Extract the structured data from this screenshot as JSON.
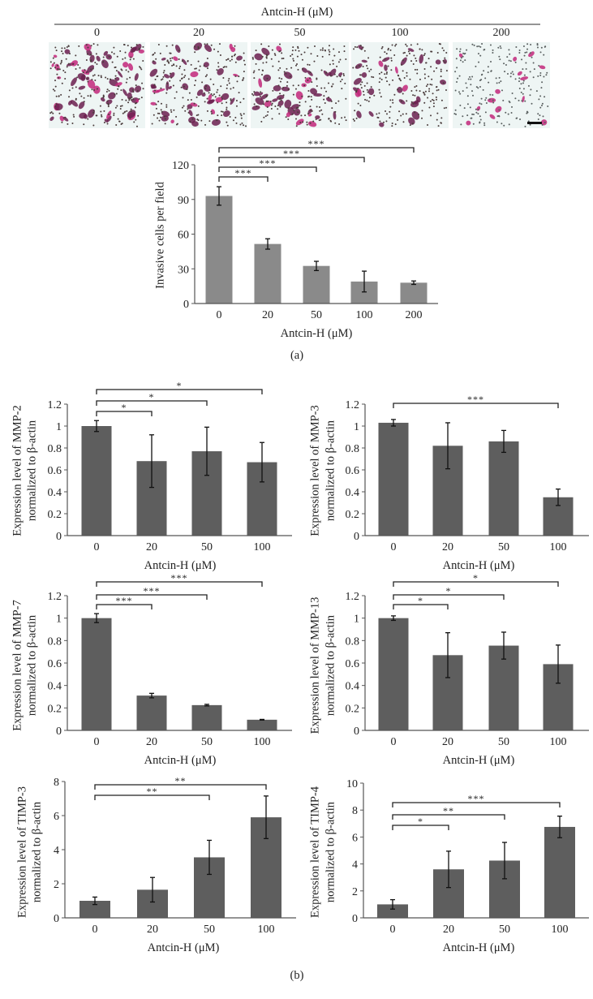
{
  "header": {
    "title": "Antcin-H (μM)",
    "image_labels": [
      "0",
      "20",
      "50",
      "100",
      "200"
    ],
    "stain_colors": {
      "cells": "#6b1f4f",
      "magenta": "#c2277a",
      "background": "#eef5f4",
      "small_cells": "#4a3c3c"
    }
  },
  "panel_labels": {
    "a": "(a)",
    "b": "(b)"
  },
  "colors": {
    "bar_a": "#8a8a8a",
    "bar_b": "#5e5e5e",
    "axis": "#555555"
  },
  "chart_data": [
    {
      "id": "invasion",
      "type": "bar",
      "categories": [
        "0",
        "20",
        "50",
        "100",
        "200"
      ],
      "values": [
        93,
        51.5,
        32.5,
        19,
        18
      ],
      "errors": [
        8,
        4.5,
        4,
        9,
        1.5
      ],
      "ylabel": [
        "Invasive cells per field"
      ],
      "xlabel": "Antcin-H (μM)",
      "ylim": [
        0,
        120
      ],
      "yticks": [
        "0",
        "30",
        "60",
        "90",
        "120"
      ],
      "significance": [
        {
          "from": 0,
          "to": 1,
          "label": "***"
        },
        {
          "from": 0,
          "to": 2,
          "label": "***"
        },
        {
          "from": 0,
          "to": 3,
          "label": "***"
        },
        {
          "from": 0,
          "to": 4,
          "label": "***"
        }
      ]
    },
    {
      "id": "mmp2",
      "type": "bar",
      "categories": [
        "0",
        "20",
        "50",
        "100"
      ],
      "values": [
        1.0,
        0.68,
        0.77,
        0.67
      ],
      "errors": [
        0.05,
        0.24,
        0.22,
        0.18
      ],
      "ylabel": [
        "Expression level of MMP-2",
        "normalized to β-actin"
      ],
      "xlabel": "Antcin-H (μM)",
      "ylim": [
        0,
        1.2
      ],
      "yticks": [
        "0",
        "0.2",
        "0.4",
        "0.6",
        "0.8",
        "1",
        "1.2"
      ],
      "significance": [
        {
          "from": 0,
          "to": 1,
          "label": "*"
        },
        {
          "from": 0,
          "to": 2,
          "label": "*"
        },
        {
          "from": 0,
          "to": 3,
          "label": "*"
        }
      ]
    },
    {
      "id": "mmp3",
      "type": "bar",
      "categories": [
        "0",
        "20",
        "50",
        "100"
      ],
      "values": [
        1.03,
        0.82,
        0.86,
        0.35
      ],
      "errors": [
        0.03,
        0.21,
        0.1,
        0.075
      ],
      "ylabel": [
        "Expression level of MMP-3",
        "normalized to β-actin"
      ],
      "xlabel": "Antcin-H (μM)",
      "ylim": [
        0,
        1.2
      ],
      "yticks": [
        "0",
        "0.2",
        "0.4",
        "0.6",
        "0.8",
        "1",
        "1.2"
      ],
      "significance": [
        {
          "from": 0,
          "to": 3,
          "label": "***"
        }
      ]
    },
    {
      "id": "mmp7",
      "type": "bar",
      "categories": [
        "0",
        "20",
        "50",
        "100"
      ],
      "values": [
        1.0,
        0.31,
        0.225,
        0.095
      ],
      "errors": [
        0.04,
        0.02,
        0.007,
        0.003
      ],
      "ylabel": [
        "Expression level of MMP-7",
        "normalized to β-actin"
      ],
      "xlabel": "Antcin-H (μM)",
      "ylim": [
        0,
        1.2
      ],
      "yticks": [
        "0",
        "0.2",
        "0.4",
        "0.6",
        "0.8",
        "1",
        "1.2"
      ],
      "significance": [
        {
          "from": 0,
          "to": 1,
          "label": "***"
        },
        {
          "from": 0,
          "to": 2,
          "label": "***"
        },
        {
          "from": 0,
          "to": 3,
          "label": "***"
        }
      ]
    },
    {
      "id": "mmp13",
      "type": "bar",
      "categories": [
        "0",
        "20",
        "50",
        "100"
      ],
      "values": [
        1.0,
        0.67,
        0.755,
        0.59
      ],
      "errors": [
        0.02,
        0.2,
        0.12,
        0.17
      ],
      "ylabel": [
        "Expression level of MMP-13",
        "normalized to β-actin"
      ],
      "xlabel": "Antcin-H (μM)",
      "ylim": [
        0,
        1.2
      ],
      "yticks": [
        "0",
        "0.2",
        "0.4",
        "0.6",
        "0.8",
        "1",
        "1.2"
      ],
      "significance": [
        {
          "from": 0,
          "to": 1,
          "label": "*"
        },
        {
          "from": 0,
          "to": 2,
          "label": "*"
        },
        {
          "from": 0,
          "to": 3,
          "label": "*"
        }
      ]
    },
    {
      "id": "timp3",
      "type": "bar",
      "categories": [
        "0",
        "20",
        "50",
        "100"
      ],
      "values": [
        1.0,
        1.65,
        3.55,
        5.9
      ],
      "errors": [
        0.22,
        0.72,
        1.0,
        1.25
      ],
      "ylabel": [
        "Expression level of TIMP-3",
        "normalized to β-actin"
      ],
      "xlabel": "Antcin-H (μM)",
      "ylim": [
        0,
        8
      ],
      "yticks": [
        "0",
        "2",
        "4",
        "6",
        "8"
      ],
      "significance": [
        {
          "from": 0,
          "to": 2,
          "label": "**"
        },
        {
          "from": 0,
          "to": 3,
          "label": "**"
        }
      ]
    },
    {
      "id": "timp4",
      "type": "bar",
      "categories": [
        "0",
        "20",
        "50",
        "100"
      ],
      "values": [
        1.0,
        3.6,
        4.25,
        6.75
      ],
      "errors": [
        0.35,
        1.35,
        1.35,
        0.8
      ],
      "ylabel": [
        "Expression level of TIMP-4",
        "normalized to β-actin"
      ],
      "xlabel": "Antcin-H (μM)",
      "ylim": [
        0,
        10
      ],
      "yticks": [
        "0",
        "2",
        "4",
        "6",
        "8",
        "10"
      ],
      "significance": [
        {
          "from": 0,
          "to": 1,
          "label": "*"
        },
        {
          "from": 0,
          "to": 2,
          "label": "**"
        },
        {
          "from": 0,
          "to": 3,
          "label": "***"
        }
      ]
    }
  ]
}
